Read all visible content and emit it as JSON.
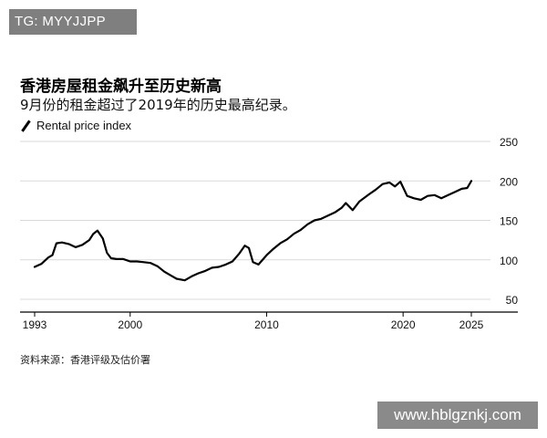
{
  "tag": "TG: MYYJJPP",
  "watermark": "www.hblgznkj.com",
  "source": "资料来源：香港评级及估价署",
  "chart_data": {
    "type": "line",
    "title": "香港房屋租金飙升至历史新高",
    "subtitle": "9月份的租金超过了2019年的历史最高纪录。",
    "xlabel": "",
    "ylabel": "",
    "x_ticks": [
      1993,
      2000,
      2010,
      2020,
      2025
    ],
    "y_ticks": [
      50,
      100,
      150,
      200,
      250
    ],
    "xlim": [
      1993,
      2025
    ],
    "ylim": [
      50,
      250
    ],
    "grid": true,
    "legend": "top-left",
    "series": [
      {
        "name": "Rental price index",
        "color": "#000000",
        "x": [
          1993.0,
          1993.5,
          1994.0,
          1994.3,
          1994.6,
          1995.0,
          1995.5,
          1996.0,
          1996.5,
          1997.0,
          1997.3,
          1997.6,
          1998.0,
          1998.3,
          1998.6,
          1999.0,
          1999.5,
          2000.0,
          2000.5,
          2001.0,
          2001.5,
          2002.0,
          2002.5,
          2003.0,
          2003.4,
          2004.0,
          2004.5,
          2005.0,
          2005.5,
          2006.0,
          2006.5,
          2007.0,
          2007.5,
          2008.0,
          2008.4,
          2008.7,
          2009.0,
          2009.4,
          2010.0,
          2010.5,
          2011.0,
          2011.5,
          2012.0,
          2012.5,
          2013.0,
          2013.5,
          2014.0,
          2014.5,
          2015.0,
          2015.5,
          2015.8,
          2016.3,
          2016.8,
          2017.5,
          2018.0,
          2018.5,
          2019.0,
          2019.4,
          2019.8,
          2020.3,
          2020.8,
          2021.3,
          2021.8,
          2022.3,
          2022.8,
          2023.3,
          2023.8,
          2024.3,
          2024.7,
          2025.0
        ],
        "y": [
          91,
          95,
          103,
          106,
          121,
          122,
          120,
          116,
          119,
          125,
          133,
          137,
          127,
          109,
          102,
          101,
          101,
          98,
          98,
          97,
          96,
          92,
          85,
          80,
          76,
          74,
          79,
          83,
          86,
          90,
          91,
          94,
          98,
          108,
          118,
          115,
          97,
          94,
          106,
          114,
          121,
          126,
          133,
          138,
          145,
          150,
          152,
          156,
          160,
          166,
          172,
          163,
          174,
          183,
          189,
          196,
          198,
          193,
          199,
          181,
          178,
          176,
          181,
          182,
          178,
          182,
          186,
          190,
          191,
          200
        ]
      }
    ]
  }
}
